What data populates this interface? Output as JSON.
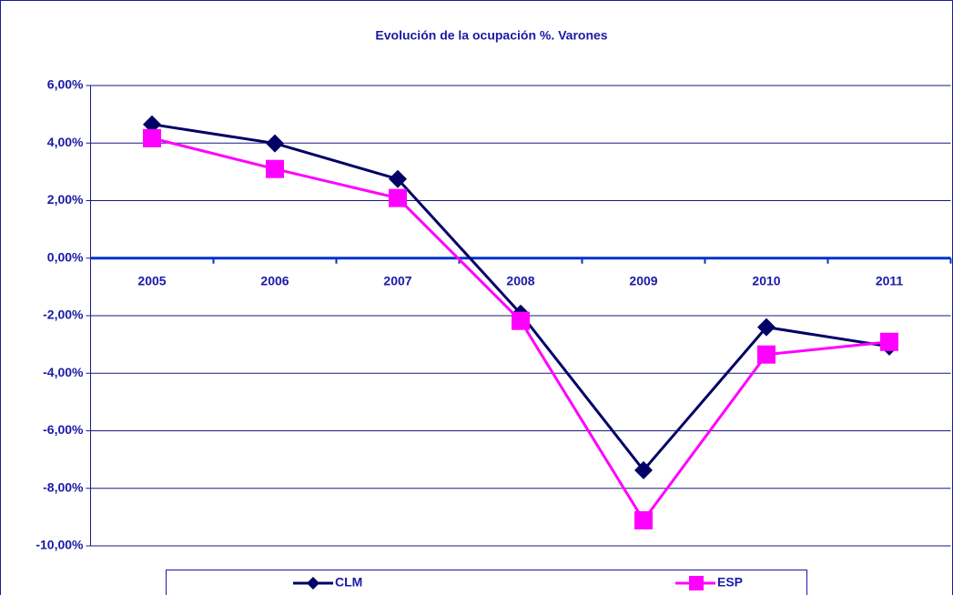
{
  "chart_data": {
    "type": "line",
    "title": "Evolución de la ocupación %. Varones",
    "categories": [
      "2005",
      "2006",
      "2007",
      "2008",
      "2009",
      "2010",
      "2011"
    ],
    "series": [
      {
        "name": "CLM",
        "color": "#000066",
        "marker": "diamond",
        "values": [
          4.65,
          3.99,
          2.75,
          -1.93,
          -7.37,
          -2.4,
          -3.07
        ]
      },
      {
        "name": "ESP",
        "color": "#ff00ff",
        "marker": "square",
        "values": [
          4.17,
          3.1,
          2.09,
          -2.18,
          -9.11,
          -3.35,
          -2.91
        ]
      }
    ],
    "ylim": [
      -10,
      6
    ],
    "yticks": [
      {
        "value": -10,
        "label": "-10,00%"
      },
      {
        "value": -8,
        "label": "-8,00%"
      },
      {
        "value": -6,
        "label": "-6,00%"
      },
      {
        "value": -4,
        "label": "-4,00%"
      },
      {
        "value": -2,
        "label": "-2,00%"
      },
      {
        "value": 0,
        "label": "0,00%"
      },
      {
        "value": 2,
        "label": "2,00%"
      },
      {
        "value": 4,
        "label": "4,00%"
      },
      {
        "value": 6,
        "label": "6,00%"
      }
    ],
    "grid": true
  }
}
